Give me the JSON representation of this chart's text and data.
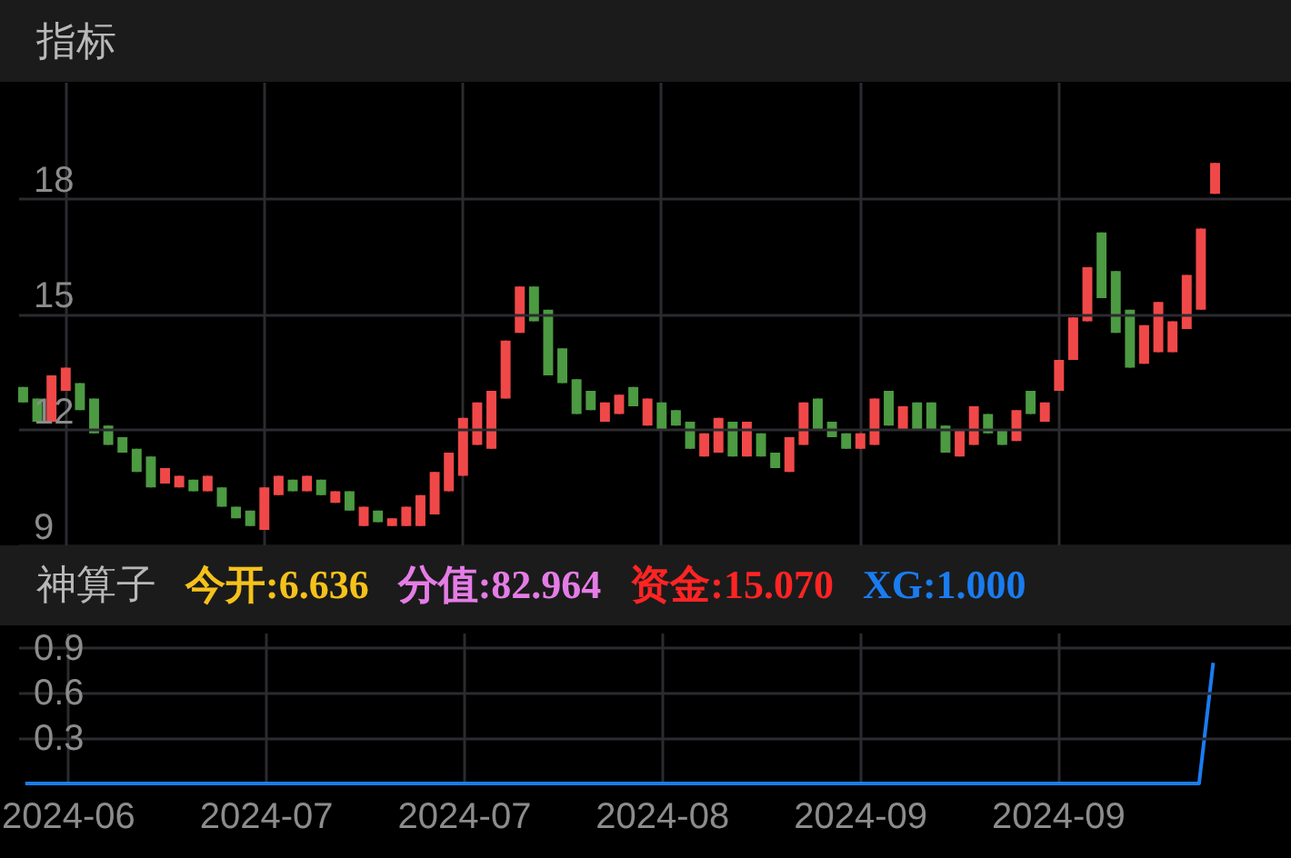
{
  "chart_data": [
    {
      "type": "candlestick",
      "title": "指标",
      "categories": [
        null,
        null,
        null,
        "2024-06",
        null,
        null,
        null,
        null,
        null,
        null,
        null,
        null,
        null,
        null,
        null,
        null,
        null,
        "2024-07",
        null,
        null,
        null,
        null,
        null,
        null,
        null,
        null,
        null,
        null,
        null,
        null,
        null,
        "2024-07",
        null,
        null,
        null,
        null,
        null,
        null,
        null,
        null,
        null,
        null,
        null,
        null,
        null,
        "2024-08",
        null,
        null,
        null,
        null,
        null,
        null,
        null,
        null,
        null,
        null,
        null,
        null,
        null,
        "2024-09",
        null,
        null,
        null,
        null,
        null,
        null,
        null,
        null,
        null,
        null,
        null,
        null,
        null,
        "2024-09",
        null,
        null,
        null,
        null,
        null,
        null,
        null,
        null,
        null,
        null,
        null,
        null,
        null,
        null,
        null,
        null
      ],
      "ohlc": [
        [
          13.1,
          13.1,
          12.7,
          12.7
        ],
        [
          12.8,
          12.8,
          12.2,
          12.2
        ],
        [
          12.2,
          13.4,
          12.2,
          13.4
        ],
        [
          13.0,
          13.6,
          13.0,
          13.6
        ],
        [
          13.2,
          13.2,
          12.5,
          12.5
        ],
        [
          12.8,
          12.8,
          11.9,
          11.9
        ],
        [
          12.1,
          12.1,
          11.6,
          11.6
        ],
        [
          11.8,
          11.8,
          11.4,
          11.4
        ],
        [
          11.5,
          11.5,
          10.9,
          10.9
        ],
        [
          11.3,
          11.3,
          10.5,
          10.5
        ],
        [
          10.6,
          11.0,
          10.6,
          11.0
        ],
        [
          10.5,
          10.8,
          10.5,
          10.8
        ],
        [
          10.7,
          10.7,
          10.4,
          10.4
        ],
        [
          10.4,
          10.8,
          10.4,
          10.8
        ],
        [
          10.5,
          10.5,
          10.0,
          10.0
        ],
        [
          10.0,
          10.0,
          9.7,
          9.7
        ],
        [
          9.9,
          9.9,
          9.5,
          9.5
        ],
        [
          9.4,
          10.5,
          9.4,
          10.5
        ],
        [
          10.3,
          10.8,
          10.3,
          10.8
        ],
        [
          10.7,
          10.7,
          10.4,
          10.4
        ],
        [
          10.4,
          10.8,
          10.4,
          10.8
        ],
        [
          10.7,
          10.7,
          10.3,
          10.3
        ],
        [
          10.1,
          10.4,
          10.1,
          10.4
        ],
        [
          10.4,
          10.4,
          9.9,
          9.9
        ],
        [
          9.5,
          10.0,
          9.5,
          10.0
        ],
        [
          9.9,
          9.9,
          9.6,
          9.6
        ],
        [
          9.5,
          9.7,
          9.5,
          9.7
        ],
        [
          9.5,
          10.0,
          9.5,
          10.0
        ],
        [
          9.5,
          10.3,
          9.5,
          10.3
        ],
        [
          9.8,
          10.9,
          9.8,
          10.9
        ],
        [
          10.4,
          11.4,
          10.4,
          11.4
        ],
        [
          10.8,
          12.3,
          10.8,
          12.3
        ],
        [
          11.6,
          12.7,
          11.6,
          12.7
        ],
        [
          11.5,
          13.0,
          11.5,
          13.0
        ],
        [
          12.8,
          14.3,
          12.8,
          14.3
        ],
        [
          14.5,
          15.7,
          14.5,
          15.7
        ],
        [
          15.7,
          15.7,
          14.8,
          14.8
        ],
        [
          15.1,
          15.1,
          13.4,
          13.4
        ],
        [
          14.1,
          14.1,
          13.2,
          13.2
        ],
        [
          13.3,
          13.3,
          12.4,
          12.4
        ],
        [
          13.0,
          13.0,
          12.5,
          12.5
        ],
        [
          12.2,
          12.7,
          12.2,
          12.7
        ],
        [
          12.4,
          12.9,
          12.4,
          12.9
        ],
        [
          13.1,
          13.1,
          12.6,
          12.6
        ],
        [
          12.1,
          12.8,
          12.1,
          12.8
        ],
        [
          12.7,
          12.7,
          12.0,
          12.0
        ],
        [
          12.5,
          12.5,
          12.1,
          12.1
        ],
        [
          12.2,
          12.2,
          11.5,
          11.5
        ],
        [
          11.3,
          11.9,
          11.3,
          11.9
        ],
        [
          11.4,
          12.3,
          11.4,
          12.3
        ],
        [
          12.2,
          12.2,
          11.3,
          11.3
        ],
        [
          11.3,
          12.2,
          11.3,
          12.2
        ],
        [
          11.9,
          11.9,
          11.3,
          11.3
        ],
        [
          11.4,
          11.4,
          11.0,
          11.0
        ],
        [
          10.9,
          11.8,
          10.9,
          11.8
        ],
        [
          11.6,
          12.7,
          11.6,
          12.7
        ],
        [
          12.8,
          12.8,
          12.0,
          12.0
        ],
        [
          12.2,
          12.2,
          11.8,
          11.8
        ],
        [
          11.9,
          11.9,
          11.5,
          11.5
        ],
        [
          11.5,
          11.9,
          11.5,
          11.9
        ],
        [
          11.6,
          12.8,
          11.6,
          12.8
        ],
        [
          13.0,
          13.0,
          12.1,
          12.1
        ],
        [
          12.0,
          12.6,
          12.0,
          12.6
        ],
        [
          12.7,
          12.7,
          12.0,
          12.0
        ],
        [
          12.7,
          12.7,
          12.0,
          12.0
        ],
        [
          12.1,
          12.1,
          11.4,
          11.4
        ],
        [
          11.3,
          12.0,
          11.3,
          12.0
        ],
        [
          11.6,
          12.6,
          11.6,
          12.6
        ],
        [
          12.4,
          12.4,
          11.9,
          11.9
        ],
        [
          12.0,
          12.0,
          11.6,
          11.6
        ],
        [
          11.7,
          12.5,
          11.7,
          12.5
        ],
        [
          13.0,
          13.0,
          12.4,
          12.4
        ],
        [
          12.2,
          12.7,
          12.2,
          12.7
        ],
        [
          13.0,
          13.8,
          13.0,
          13.8
        ],
        [
          13.8,
          14.9,
          13.8,
          14.9
        ],
        [
          14.8,
          16.2,
          14.8,
          16.2
        ],
        [
          17.1,
          17.1,
          15.4,
          15.4
        ],
        [
          16.1,
          16.1,
          14.5,
          14.5
        ],
        [
          15.1,
          15.1,
          13.6,
          13.6
        ],
        [
          13.7,
          14.7,
          13.7,
          14.7
        ],
        [
          14.0,
          15.3,
          14.0,
          15.3
        ],
        [
          14.0,
          14.8,
          14.0,
          14.8
        ],
        [
          14.6,
          16.0,
          14.6,
          16.0
        ],
        [
          15.1,
          17.2,
          15.1,
          17.2
        ],
        [
          18.1,
          18.9,
          18.1,
          18.9
        ],
        null,
        null,
        null,
        null,
        null
      ],
      "ylim": [
        9,
        21
      ],
      "yticks": [
        9,
        12,
        15,
        18
      ],
      "grid": true,
      "tick_labels": "y"
    },
    {
      "type": "line",
      "title": "神算子",
      "annotations": [
        "今开:6.636",
        "分值:82.964",
        "资金:15.070",
        "XG:1.000"
      ],
      "categories": [
        null,
        null,
        null,
        "2024-06",
        null,
        null,
        null,
        null,
        null,
        null,
        null,
        null,
        null,
        null,
        null,
        null,
        null,
        "2024-07",
        null,
        null,
        null,
        null,
        null,
        null,
        null,
        null,
        null,
        null,
        null,
        null,
        null,
        "2024-07",
        null,
        null,
        null,
        null,
        null,
        null,
        null,
        null,
        null,
        null,
        null,
        null,
        null,
        "2024-08",
        null,
        null,
        null,
        null,
        null,
        null,
        null,
        null,
        null,
        null,
        null,
        null,
        null,
        "2024-09",
        null,
        null,
        null,
        null,
        null,
        null,
        null,
        null,
        null,
        null,
        null,
        null,
        null,
        "2024-09",
        null,
        null,
        null,
        null,
        null,
        null,
        null,
        null,
        null,
        null,
        null,
        null,
        null,
        null,
        null,
        null
      ],
      "series": [
        {
          "color": "#1a7cf0",
          "values": [
            0,
            0,
            0,
            0,
            0,
            0,
            0,
            0,
            0,
            0,
            0,
            0,
            0,
            0,
            0,
            0,
            0,
            0,
            0,
            0,
            0,
            0,
            0,
            0,
            0,
            0,
            0,
            0,
            0,
            0,
            0,
            0,
            0,
            0,
            0,
            0,
            0,
            0,
            0,
            0,
            0,
            0,
            0,
            0,
            0,
            0,
            0,
            0,
            0,
            0,
            0,
            0,
            0,
            0,
            0,
            0,
            0,
            0,
            0,
            0,
            0,
            0,
            0,
            0,
            0,
            0,
            0,
            0,
            0,
            0,
            0,
            0,
            0,
            0,
            0,
            0,
            0,
            0,
            0,
            0,
            0,
            0,
            0,
            0,
            0.8,
            null,
            null,
            null,
            null,
            null
          ]
        }
      ],
      "ylim": [
        0,
        1
      ],
      "yticks": [
        0.3,
        0.6,
        0.9
      ],
      "grid": true
    }
  ]
}
